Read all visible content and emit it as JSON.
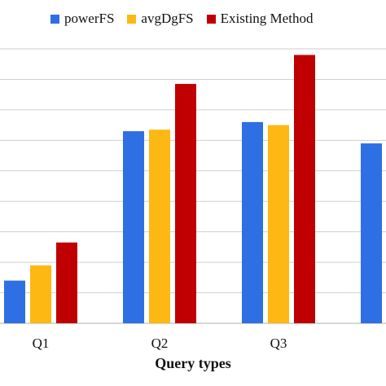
{
  "chart_data": {
    "type": "bar",
    "title": "",
    "xlabel": "Query types",
    "ylabel": "",
    "categories": [
      "Q1",
      "Q2",
      "Q3",
      ""
    ],
    "series": [
      {
        "name": "powerFS",
        "color": "#2f6fe4",
        "values": [
          1.4,
          6.3,
          6.6,
          5.9
        ]
      },
      {
        "name": "avgDgFS",
        "color": "#fdb813",
        "values": [
          1.9,
          6.35,
          6.5,
          null
        ]
      },
      {
        "name": "Existing Method",
        "color": "#c00000",
        "values": [
          2.65,
          7.85,
          8.8,
          null
        ]
      }
    ],
    "ylim": [
      0,
      9
    ],
    "grid": true,
    "legend_position": "top"
  }
}
